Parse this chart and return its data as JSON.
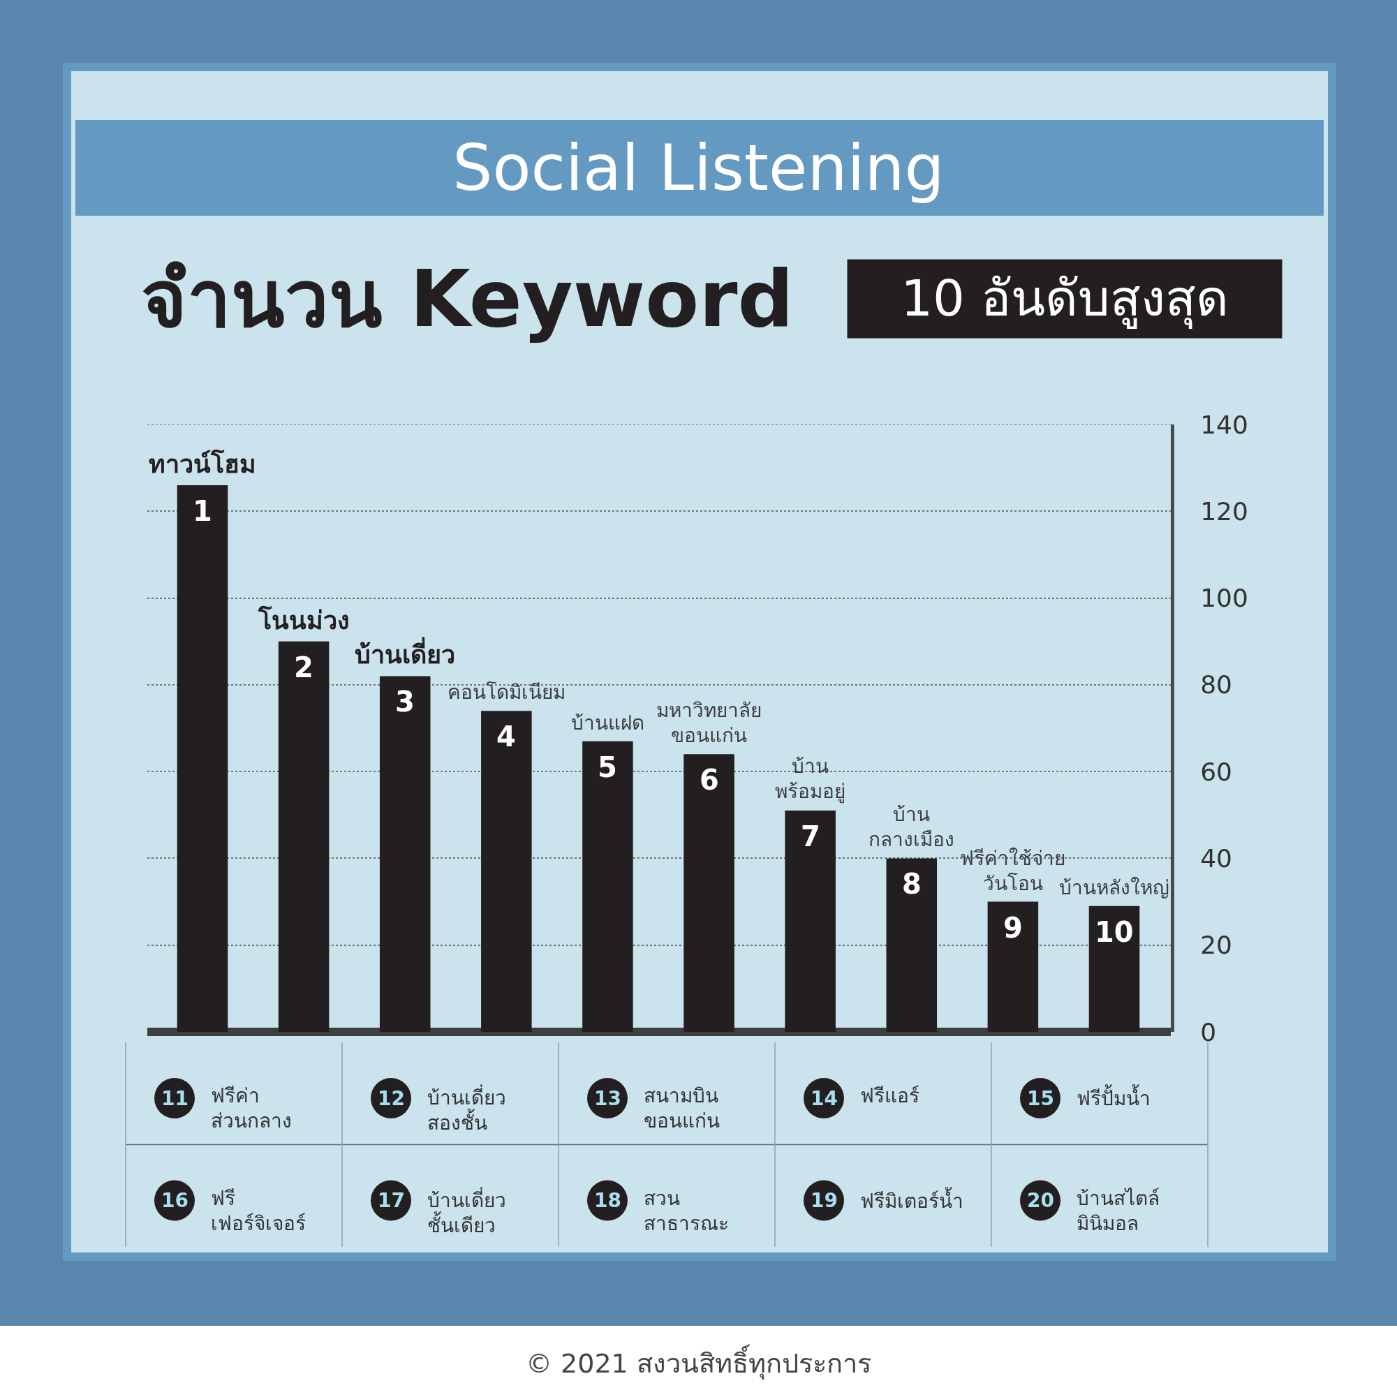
{
  "chart_data": {
    "type": "bar",
    "title": "Social Listening",
    "subtitle": "จำนวน Keyword",
    "categories": [
      "ทาวน์โฮม",
      "โนนม่วง",
      "บ้านเดี่ยว",
      "คอนโดมิเนียม",
      "บ้านแฝด",
      "มหาวิทยาลัย\nขอนแก่น",
      "บ้าน\nพร้อมอยู่",
      "บ้าน\nกลางเมือง",
      "ฟรีค่าใช้จ่าย\nวันโอน",
      "บ้านหลังใหญ่"
    ],
    "values": [
      126,
      90,
      82,
      74,
      67,
      64,
      51,
      40,
      30,
      29
    ],
    "color": "#231f20",
    "ylim": [
      0,
      140
    ],
    "yticks": [
      0,
      20,
      40,
      60,
      80,
      100,
      120,
      140
    ],
    "grid": "y",
    "annotations": [
      {
        "text": "1",
        "x": "ทาวน์โฮม",
        "y": 126
      },
      {
        "text": "2",
        "x": "โนนม่วง",
        "y": 90
      },
      {
        "text": "3",
        "x": "บ้านเดี่ยว",
        "y": 82
      },
      {
        "text": "4",
        "x": "คอนโดมิเนียม",
        "y": 74
      },
      {
        "text": "5",
        "x": "บ้านแฝด",
        "y": 67
      },
      {
        "text": "6",
        "x": "มหาวิทยาลัย\nขอนแก่น",
        "y": 64
      },
      {
        "text": "7",
        "x": "บ้าน\nพร้อมอยู่",
        "y": 51
      },
      {
        "text": "8",
        "x": "บ้าน\nกลางเมือง",
        "y": 40
      },
      {
        "text": "9",
        "x": "ฟรีค่าใช้จ่าย\nวันโอน",
        "y": 30
      },
      {
        "text": "10",
        "x": "บ้านหลังใหญ่",
        "y": 29
      },
      "10 อันดับสูงสุด",
      "11",
      "ฟรีค่า\nส่วนกลาง",
      "12",
      "บ้านเดี่ยว\nสองชั้น",
      "13",
      "สนามบิน\nขอนแก่น",
      "14",
      "ฟรีแอร์",
      "15",
      "ฟรีปั้มน้ำ",
      "16",
      "ฟรี\nเฟอร์จิเจอร์",
      "17",
      "บ้านเดี่ยว\nชั้นเดียว",
      "18",
      "สวน\nสาธารณะ",
      "19",
      "ฟรีมิเตอร์น้ำ",
      "20",
      "บ้านสไตล์\nมินิมอล",
      "© 2021 สงวนสิทธิ์ทุกประการ"
    ]
  }
}
